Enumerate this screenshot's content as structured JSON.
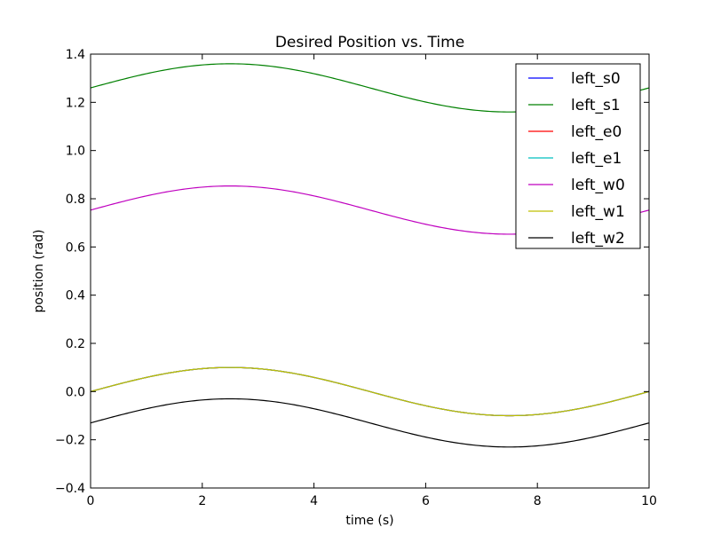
{
  "chart_data": {
    "type": "line",
    "title": "Desired Position vs. Time",
    "xlabel": "time (s)",
    "ylabel": "position (rad)",
    "xlim": [
      0,
      10
    ],
    "ylim": [
      -0.4,
      1.4
    ],
    "xticks": [
      0,
      2,
      4,
      6,
      8,
      10
    ],
    "yticks": [
      -0.4,
      -0.2,
      0.0,
      0.2,
      0.4,
      0.6,
      0.8,
      1.0,
      1.2,
      1.4
    ],
    "grid": false,
    "legend_position": "top-right",
    "period": 10,
    "series": [
      {
        "name": "left_s0",
        "color": "#0000ff",
        "offset": 0.0,
        "amplitude": 0.1
      },
      {
        "name": "left_s1",
        "color": "#008000",
        "offset": 1.26,
        "amplitude": 0.1
      },
      {
        "name": "left_e0",
        "color": "#ff0000",
        "offset": 0.0,
        "amplitude": 0.1
      },
      {
        "name": "left_e1",
        "color": "#00bfbf",
        "offset": 0.0,
        "amplitude": 0.1
      },
      {
        "name": "left_w0",
        "color": "#bf00bf",
        "offset": 0.753,
        "amplitude": 0.1
      },
      {
        "name": "left_w1",
        "color": "#bfbf00",
        "offset": 0.0,
        "amplitude": 0.1
      },
      {
        "name": "left_w2",
        "color": "#000000",
        "offset": -0.13,
        "amplitude": 0.1
      }
    ]
  }
}
